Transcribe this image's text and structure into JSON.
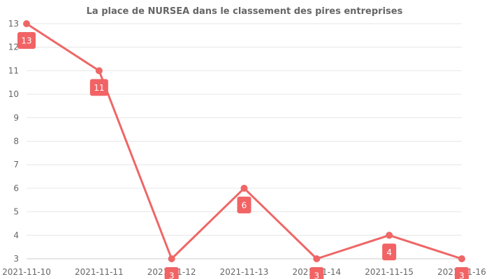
{
  "chart_data": {
    "type": "line",
    "title": "La place de NURSEA dans le classement des pires entreprises",
    "xlabel": "",
    "ylabel": "",
    "categories": [
      "2021-11-10",
      "2021-11-11",
      "2021-11-12",
      "2021-11-13",
      "2021-11-14",
      "2021-11-15",
      "2021-11-16"
    ],
    "series": [
      {
        "values": [
          13,
          11,
          3,
          6,
          3,
          4,
          3
        ]
      }
    ],
    "ylim": [
      3,
      13
    ],
    "yticks": [
      3,
      4,
      5,
      6,
      7,
      8,
      9,
      10,
      11,
      12,
      13
    ],
    "grid": true,
    "legend": "none",
    "colors": {
      "line": "#ef6666",
      "label_bg": "#f16364",
      "grid": "#e6e6e6",
      "axis_text": "#666666"
    }
  }
}
